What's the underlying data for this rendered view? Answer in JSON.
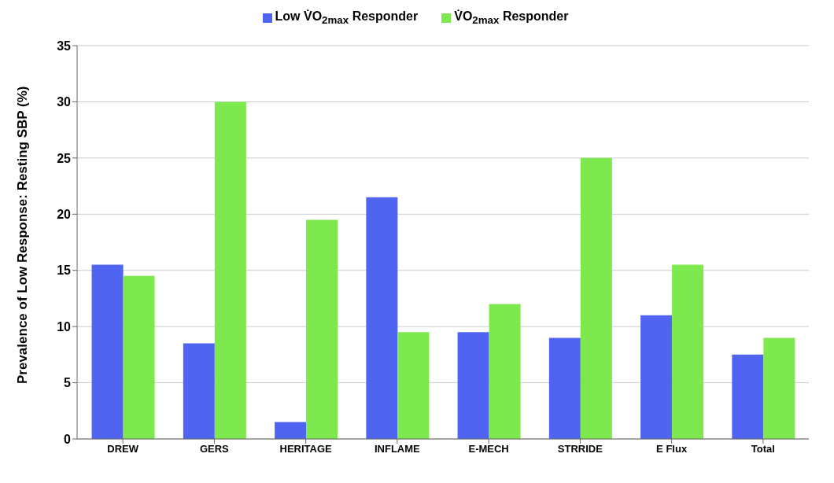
{
  "chart_data": {
    "type": "bar",
    "ylabel": "Prevalence of Low Response: Resting SBP (%)",
    "categories": [
      "DREW",
      "GERS",
      "HERITAGE",
      "INFLAME",
      "E-MECH",
      "STRRIDE",
      "E Flux",
      "Total"
    ],
    "series": [
      {
        "name": "Low V̇O$_{2max}$ Responder",
        "color": "#4f64f0",
        "values": [
          15.5,
          8.5,
          1.5,
          21.5,
          9.5,
          9,
          11,
          7.5
        ]
      },
      {
        "name": "V̇O$_{2max}$ Responder",
        "color": "#7ee84f",
        "values": [
          14.5,
          30,
          19.5,
          9.5,
          12,
          25,
          15.5,
          9
        ]
      }
    ],
    "ylim": [
      0,
      35
    ],
    "yticks": [
      0,
      5,
      10,
      15,
      20,
      25,
      30,
      35
    ],
    "grid": "y",
    "legend": "top"
  }
}
